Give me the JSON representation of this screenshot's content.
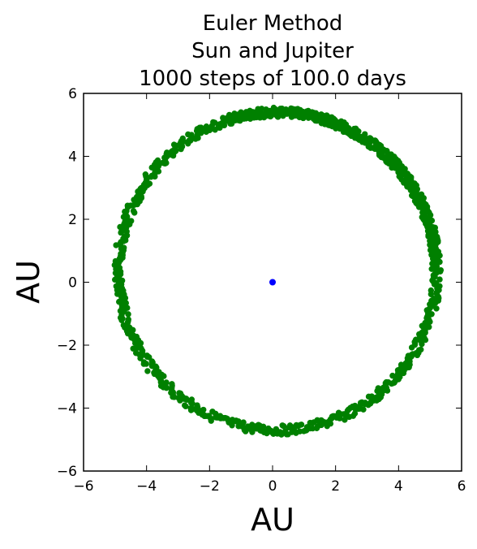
{
  "chart_data": {
    "type": "scatter",
    "title_lines": [
      "Euler Method",
      "Sun and Jupiter",
      "1000 steps of 100.0 days"
    ],
    "xlabel": "AU",
    "ylabel": "AU",
    "xlim": [
      -6,
      6
    ],
    "ylim": [
      -6,
      6
    ],
    "xticks": [
      -6,
      -4,
      -2,
      0,
      2,
      4,
      6
    ],
    "yticks": [
      -6,
      -4,
      -2,
      0,
      2,
      4,
      6
    ],
    "tick_labels_x": [
      "−6",
      "−4",
      "−2",
      "0",
      "2",
      "4",
      "6"
    ],
    "tick_labels_y": [
      "−6",
      "−4",
      "−2",
      "0",
      "2",
      "4",
      "6"
    ],
    "grid": false,
    "series": [
      {
        "color": "#008000",
        "orbit": {
          "center": [
            0.15,
            0.35
          ],
          "x_radius": 5.05,
          "y_radius": 5.05,
          "band_width": 0.3,
          "steps": 1000
        },
        "x": [
          5.2,
          3.6,
          0.0,
          -3.6,
          -5.0,
          -3.6,
          0.0,
          3.6
        ],
        "y": [
          0.0,
          3.9,
          5.4,
          3.9,
          0.0,
          -3.6,
          -4.7,
          -3.6
        ]
      },
      {
        "color": "#0000ff",
        "x": [
          0.0
        ],
        "y": [
          0.0
        ]
      }
    ]
  }
}
